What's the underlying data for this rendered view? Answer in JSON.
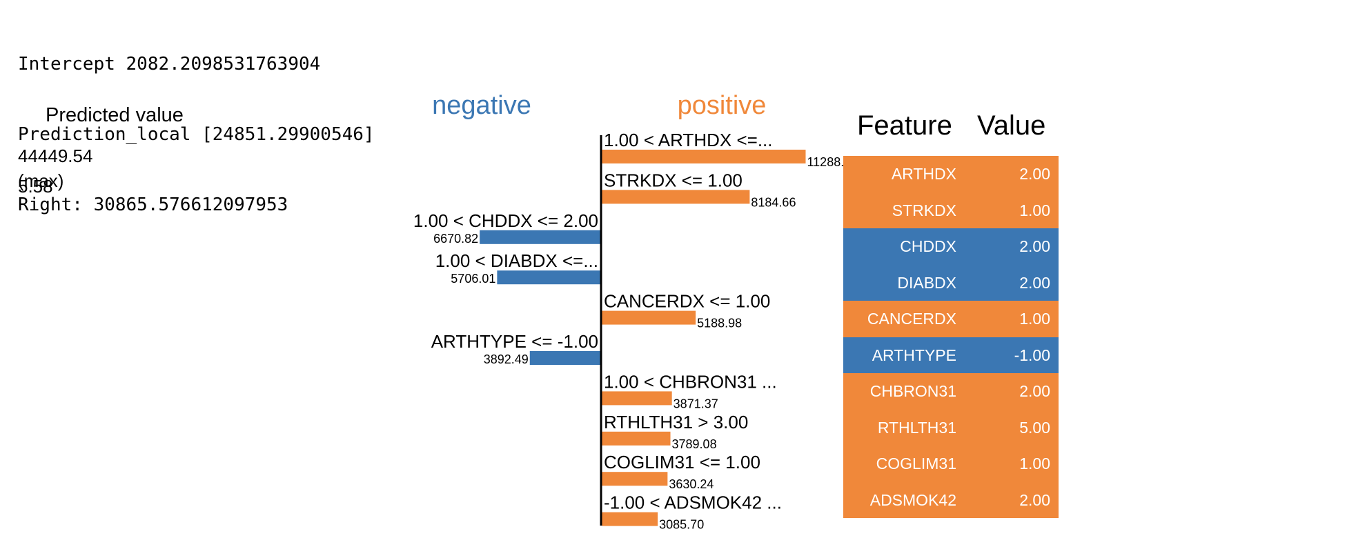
{
  "console": {
    "intercept_line": "Intercept 2082.2098531763904",
    "prediction_local_line": "Prediction_local [24851.29900546]",
    "right_line": "Right: 30865.576612097953"
  },
  "predicted_value": {
    "title": "Predicted value",
    "max_value": "44449.54",
    "max_label": "(max)",
    "overlap_fragment": "5.58"
  },
  "colors": {
    "negative": "#3b77b3",
    "positive": "#f0883a",
    "axis": "#000000"
  },
  "chart_data": {
    "type": "bar",
    "orientation": "horizontal",
    "column_titles": {
      "negative": "negative",
      "positive": "positive"
    },
    "bars": [
      {
        "label": "1.00 < ARTHDX <=...",
        "value": 11288.0,
        "value_label": "11288.",
        "side": "positive"
      },
      {
        "label": "STRKDX <= 1.00",
        "value": 8184.66,
        "value_label": "8184.66",
        "side": "positive"
      },
      {
        "label": "1.00 < CHDDX <= 2.00",
        "value": 6670.82,
        "value_label": "6670.82",
        "side": "negative"
      },
      {
        "label": "1.00 < DIABDX <=...",
        "value": 5706.01,
        "value_label": "5706.01",
        "side": "negative"
      },
      {
        "label": "CANCERDX <= 1.00",
        "value": 5188.98,
        "value_label": "5188.98",
        "side": "positive"
      },
      {
        "label": "ARTHTYPE <= -1.00",
        "value": 3892.49,
        "value_label": "3892.49",
        "side": "negative"
      },
      {
        "label": "1.00 < CHBRON31 ...",
        "value": 3871.37,
        "value_label": "3871.37",
        "side": "positive"
      },
      {
        "label": "RTHLTH31 > 3.00",
        "value": 3789.08,
        "value_label": "3789.08",
        "side": "positive"
      },
      {
        "label": "COGLIM31 <= 1.00",
        "value": 3630.24,
        "value_label": "3630.24",
        "side": "positive"
      },
      {
        "label": "-1.00 < ADSMOK42 ...",
        "value": 3085.7,
        "value_label": "3085.70",
        "side": "positive"
      }
    ]
  },
  "feature_table": {
    "header_feature": "Feature",
    "header_value": "Value",
    "rows": [
      {
        "feature": "ARTHDX",
        "value": "2.00",
        "side": "positive"
      },
      {
        "feature": "STRKDX",
        "value": "1.00",
        "side": "positive"
      },
      {
        "feature": "CHDDX",
        "value": "2.00",
        "side": "negative"
      },
      {
        "feature": "DIABDX",
        "value": "2.00",
        "side": "negative"
      },
      {
        "feature": "CANCERDX",
        "value": "1.00",
        "side": "positive"
      },
      {
        "feature": "ARTHTYPE",
        "value": "-1.00",
        "side": "negative"
      },
      {
        "feature": "CHBRON31",
        "value": "2.00",
        "side": "positive"
      },
      {
        "feature": "RTHLTH31",
        "value": "5.00",
        "side": "positive"
      },
      {
        "feature": "COGLIM31",
        "value": "1.00",
        "side": "positive"
      },
      {
        "feature": "ADSMOK42",
        "value": "2.00",
        "side": "positive"
      }
    ]
  }
}
